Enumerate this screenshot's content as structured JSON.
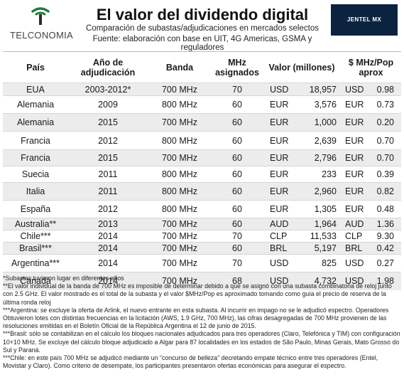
{
  "header": {
    "logo_text": "TELCONOMIA",
    "title": "El valor del dividendo digital",
    "subtitle": "Comparación de subastas/adjudicaciones en mercados selectos",
    "source": "Fuente: elaboración con base en UIT, 4G Americas, GSMA y reguladores",
    "brand": "JENTEL MX",
    "colors": {
      "logo_green": "#1f7a3a",
      "logo_dark": "#2b2b2b",
      "brand_bg": "#0c2340",
      "row_shade": "#ececec"
    },
    "icons": [
      "telconomia-logo-icon"
    ]
  },
  "table": {
    "headers": {
      "country": "País",
      "year": "Año de adjudicación",
      "band": "Banda",
      "mhz": "MHz asignados",
      "value": "Valor (millones)",
      "ratio": "$ MHz/Pop aprox"
    },
    "rows": [
      {
        "country": "EUA",
        "year": "2003-2012*",
        "band": "700 MHz",
        "mhz": "70",
        "cur": "USD",
        "value": "18,957",
        "cur2": "USD",
        "ratio": "0.98"
      },
      {
        "country": "Alemania",
        "year": "2009",
        "band": "800 MHz",
        "mhz": "60",
        "cur": "EUR",
        "value": "3,576",
        "cur2": "EUR",
        "ratio": "0.73"
      },
      {
        "country": "Alemania",
        "year": "2015",
        "band": "700 MHz",
        "mhz": "60",
        "cur": "EUR",
        "value": "1,000",
        "cur2": "EUR",
        "ratio": "0.20"
      },
      {
        "country": "Francia",
        "year": "2012",
        "band": "800 MHz",
        "mhz": "60",
        "cur": "EUR",
        "value": "2,639",
        "cur2": "EUR",
        "ratio": "0.70"
      },
      {
        "country": "Francia",
        "year": "2015",
        "band": "700 MHz",
        "mhz": "60",
        "cur": "EUR",
        "value": "2,796",
        "cur2": "EUR",
        "ratio": "0.70"
      },
      {
        "country": "Suecia",
        "year": "2011",
        "band": "800 MHz",
        "mhz": "60",
        "cur": "EUR",
        "value": "233",
        "cur2": "EUR",
        "ratio": "0.39"
      },
      {
        "country": "Italia",
        "year": "2011",
        "band": "800 MHz",
        "mhz": "60",
        "cur": "EUR",
        "value": "2,960",
        "cur2": "EUR",
        "ratio": "0.82"
      },
      {
        "country": "España",
        "year": "2012",
        "band": "800 MHz",
        "mhz": "60",
        "cur": "EUR",
        "value": "1,305",
        "cur2": "EUR",
        "ratio": "0.48"
      },
      {
        "country": "Australia**",
        "year": "2013",
        "band": "700 MHz",
        "mhz": "60",
        "cur": "AUD",
        "value": "1,964",
        "cur2": "AUD",
        "ratio": "1.36"
      },
      {
        "country": "Chile***",
        "year": "2014",
        "band": "700 MHz",
        "mhz": "70",
        "cur": "CLP",
        "value": "11,533",
        "cur2": "CLP",
        "ratio": "9.30"
      },
      {
        "country": "Brasil***",
        "year": "2014",
        "band": "700 MHz",
        "mhz": "60",
        "cur": "BRL",
        "value": "5,197",
        "cur2": "BRL",
        "ratio": "0.42"
      },
      {
        "country": "Argentina***",
        "year": "2014",
        "band": "700 MHz",
        "mhz": "70",
        "cur": "USD",
        "value": "825",
        "cur2": "USD",
        "ratio": "0.27"
      },
      {
        "country": "Canadá",
        "year": "2014",
        "band": "700 MHz",
        "mhz": "68",
        "cur": "USD",
        "value": "4,732",
        "cur2": "USD",
        "ratio": "1.98"
      }
    ]
  },
  "notes": [
    "*Subastas tuvieron lugar en diferentes años",
    "**El valor individual de la banda de 700 MHz es imposible de determinar debido a que se asignó con una subasta combinatoria de reloj junto con 2.5 GHz. El valor mostrado es el total de la subasta y el valor $MHz/Pop es aproximado tomando como guía el precio de reserva de la última ronda reloj",
    "***Argentina: se excluye la oferta de Arlink, el nuevo entrante en esta subasta. Al incurrir en impago no se le adjudicó espectro. Operadores Obtuvieron lotes con distintas frecuencias en la licitación (AWS, 1.9 GHz, 700 MHz), las cifras desagregadas de 700 MHz provienen de las resoluciones emitidas en el Boletín Oficial de la República Argentina el 12 de junio de 2015.",
    "***Brasil: sólo se contabilizan en el cálculo los bloques nacionales adjudicados para tres operadores (Claro, Telefónica y TIM) con configuración 10+10 MHz. Se excluye del cálculo bloque adjudicado a Algar para 87 localidades en los estados de São Paulo, Minas Gerais, Mato Grosso do Sul y Paraná.",
    "***Chile: en este país 700 MHz se adjudicó mediante un “concurso de belleza” decretando empate técnico entre tres operadores (Entel, Movistar y Claro). Como criterio de desempate, los participantes presentaron ofertas económicas para asegurar el espectro."
  ]
}
